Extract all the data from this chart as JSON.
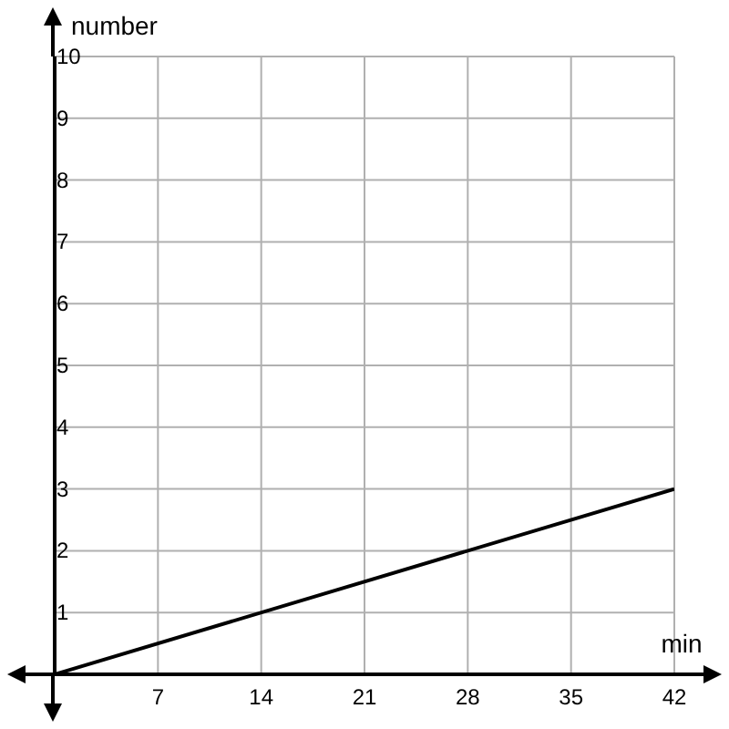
{
  "chart_data": {
    "type": "line",
    "xlabel": "min",
    "ylabel": "number",
    "x": [
      0,
      42
    ],
    "series": [
      {
        "color": "#000000",
        "values": [
          0,
          3
        ]
      }
    ],
    "xlim": [
      0,
      42
    ],
    "xticks": [
      7,
      14,
      21,
      28,
      35,
      42
    ],
    "ylim": [
      0,
      10
    ],
    "yticks": [
      1,
      2,
      3,
      4,
      5,
      6,
      7,
      8,
      9,
      10
    ],
    "grid": true,
    "marker": "none",
    "line_style": "solid"
  }
}
